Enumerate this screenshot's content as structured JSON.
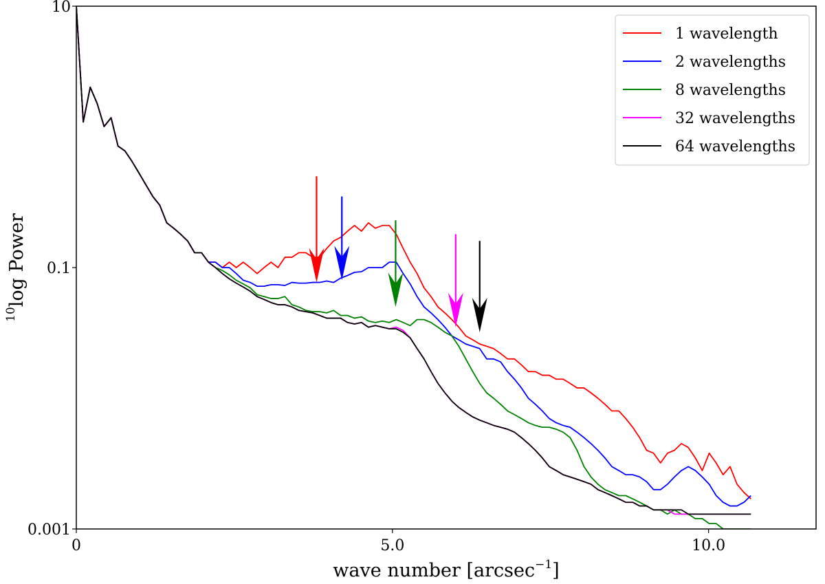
{
  "chart_data": {
    "type": "line",
    "title": "",
    "xlabel": "wave number [arcsec",
    "xlabel_sup": "−1",
    "xlabel_close": "]",
    "ylabel_sup": "10",
    "ylabel": "log Power",
    "xlim": [
      0,
      11.7
    ],
    "ylim": [
      0.001,
      10
    ],
    "yscale": "log",
    "grid": false,
    "legend_position": "top-right",
    "x_ticks": [
      {
        "value": 0,
        "label": "0"
      },
      {
        "value": 5.0,
        "label": "5.0"
      },
      {
        "value": 10.0,
        "label": "10.0"
      }
    ],
    "y_ticks": [
      {
        "value": 0.001,
        "label": "0.001"
      },
      {
        "value": 0.1,
        "label": "0.1"
      },
      {
        "value": 10,
        "label": "10"
      }
    ],
    "x": [
      0.0,
      0.11,
      0.22,
      0.33,
      0.44,
      0.55,
      0.66,
      0.77,
      0.88,
      0.99,
      1.1,
      1.21,
      1.32,
      1.43,
      1.54,
      1.65,
      1.76,
      1.87,
      1.98,
      2.09,
      2.2,
      2.31,
      2.42,
      2.53,
      2.64,
      2.75,
      2.86,
      2.97,
      3.08,
      3.19,
      3.3,
      3.41,
      3.52,
      3.63,
      3.74,
      3.85,
      3.96,
      4.07,
      4.18,
      4.29,
      4.4,
      4.51,
      4.62,
      4.73,
      4.84,
      4.95,
      5.06,
      5.17,
      5.28,
      5.39,
      5.5,
      5.61,
      5.72,
      5.83,
      5.94,
      6.05,
      6.16,
      6.27,
      6.38,
      6.49,
      6.6,
      6.71,
      6.82,
      6.93,
      7.04,
      7.15,
      7.26,
      7.37,
      7.48,
      7.59,
      7.7,
      7.81,
      7.92,
      8.03,
      8.14,
      8.25,
      8.36,
      8.47,
      8.58,
      8.69,
      8.8,
      8.91,
      9.02,
      9.13,
      9.24,
      9.35,
      9.46,
      9.57,
      9.68,
      9.79,
      9.9,
      10.01,
      10.12,
      10.23,
      10.34,
      10.45,
      10.56,
      10.67
    ],
    "series": [
      {
        "name": "1 wavelength",
        "color": "#ff0000",
        "values": [
          10,
          1.3,
          2.4,
          1.8,
          1.2,
          1.4,
          0.85,
          0.78,
          0.65,
          0.53,
          0.43,
          0.35,
          0.3,
          0.22,
          0.2,
          0.18,
          0.16,
          0.13,
          0.13,
          0.11,
          0.11,
          0.1,
          0.11,
          0.1,
          0.11,
          0.1,
          0.09,
          0.1,
          0.11,
          0.1,
          0.12,
          0.12,
          0.13,
          0.13,
          0.12,
          0.12,
          0.14,
          0.16,
          0.17,
          0.19,
          0.21,
          0.19,
          0.22,
          0.2,
          0.21,
          0.21,
          0.18,
          0.14,
          0.11,
          0.09,
          0.07,
          0.06,
          0.05,
          0.045,
          0.04,
          0.035,
          0.03,
          0.028,
          0.026,
          0.025,
          0.024,
          0.022,
          0.02,
          0.02,
          0.018,
          0.016,
          0.016,
          0.015,
          0.015,
          0.014,
          0.014,
          0.013,
          0.012,
          0.012,
          0.011,
          0.01,
          0.009,
          0.008,
          0.008,
          0.007,
          0.006,
          0.005,
          0.004,
          0.0038,
          0.0032,
          0.0038,
          0.004,
          0.0045,
          0.0042,
          0.0035,
          0.0028,
          0.0038,
          0.0032,
          0.0026,
          0.003,
          0.0022,
          0.0019,
          0.0017
        ]
      },
      {
        "name": "2 wavelengths",
        "color": "#0000ff",
        "values": [
          10,
          1.3,
          2.4,
          1.8,
          1.2,
          1.4,
          0.85,
          0.78,
          0.65,
          0.53,
          0.43,
          0.35,
          0.3,
          0.22,
          0.2,
          0.18,
          0.16,
          0.13,
          0.13,
          0.11,
          0.11,
          0.1,
          0.1,
          0.09,
          0.08,
          0.077,
          0.072,
          0.072,
          0.074,
          0.074,
          0.073,
          0.077,
          0.076,
          0.076,
          0.077,
          0.077,
          0.079,
          0.077,
          0.083,
          0.087,
          0.092,
          0.093,
          0.1,
          0.1,
          0.1,
          0.11,
          0.11,
          0.09,
          0.075,
          0.06,
          0.05,
          0.045,
          0.04,
          0.035,
          0.03,
          0.028,
          0.026,
          0.025,
          0.024,
          0.02,
          0.02,
          0.019,
          0.016,
          0.014,
          0.012,
          0.01,
          0.009,
          0.008,
          0.007,
          0.0065,
          0.0062,
          0.006,
          0.0055,
          0.005,
          0.0045,
          0.004,
          0.0035,
          0.003,
          0.0028,
          0.0026,
          0.0026,
          0.0025,
          0.0023,
          0.002,
          0.002,
          0.0022,
          0.0025,
          0.0028,
          0.003,
          0.0028,
          0.0025,
          0.0022,
          0.0018,
          0.0016,
          0.0015,
          0.0015,
          0.0016,
          0.0018
        ]
      },
      {
        "name": "8 wavelengths",
        "color": "#008000",
        "values": [
          10,
          1.3,
          2.4,
          1.8,
          1.2,
          1.4,
          0.85,
          0.78,
          0.65,
          0.53,
          0.43,
          0.35,
          0.3,
          0.22,
          0.2,
          0.18,
          0.16,
          0.13,
          0.13,
          0.11,
          0.1,
          0.095,
          0.088,
          0.08,
          0.075,
          0.07,
          0.062,
          0.06,
          0.058,
          0.058,
          0.06,
          0.052,
          0.05,
          0.047,
          0.046,
          0.046,
          0.045,
          0.047,
          0.043,
          0.043,
          0.041,
          0.042,
          0.039,
          0.038,
          0.039,
          0.038,
          0.04,
          0.038,
          0.036,
          0.04,
          0.04,
          0.038,
          0.035,
          0.032,
          0.03,
          0.025,
          0.02,
          0.016,
          0.013,
          0.011,
          0.01,
          0.009,
          0.008,
          0.0075,
          0.007,
          0.0065,
          0.0062,
          0.006,
          0.006,
          0.0058,
          0.0055,
          0.005,
          0.004,
          0.003,
          0.0025,
          0.0022,
          0.002,
          0.0019,
          0.0018,
          0.0018,
          0.0017,
          0.0016,
          0.0015,
          0.0014,
          0.0014,
          0.0013,
          0.0014,
          0.0013,
          0.0013,
          0.0012,
          0.0012,
          0.0011,
          0.0011,
          0.001,
          0.001,
          0.001,
          0.001,
          0.001
        ]
      },
      {
        "name": "32 wavelengths",
        "color": "#ff00ff",
        "values": [
          10,
          1.3,
          2.4,
          1.8,
          1.2,
          1.4,
          0.85,
          0.78,
          0.65,
          0.53,
          0.43,
          0.35,
          0.3,
          0.22,
          0.2,
          0.18,
          0.16,
          0.13,
          0.13,
          0.11,
          0.1,
          0.09,
          0.082,
          0.076,
          0.071,
          0.066,
          0.06,
          0.057,
          0.054,
          0.052,
          0.052,
          0.05,
          0.047,
          0.046,
          0.045,
          0.043,
          0.041,
          0.041,
          0.041,
          0.038,
          0.037,
          0.038,
          0.035,
          0.036,
          0.035,
          0.034,
          0.035,
          0.033,
          0.029,
          0.024,
          0.02,
          0.016,
          0.013,
          0.011,
          0.0095,
          0.0085,
          0.0078,
          0.0072,
          0.0068,
          0.0065,
          0.0062,
          0.006,
          0.0058,
          0.0055,
          0.005,
          0.0045,
          0.004,
          0.0035,
          0.003,
          0.0028,
          0.0026,
          0.0025,
          0.0024,
          0.0023,
          0.0022,
          0.002,
          0.0019,
          0.0018,
          0.0017,
          0.0016,
          0.0016,
          0.0015,
          0.0015,
          0.0014,
          0.0014,
          0.0014,
          0.0013,
          0.0013,
          0.0013,
          0.0013,
          0.0013,
          0.0013,
          0.0013,
          0.0013,
          0.0013,
          0.0013,
          0.0013,
          0.0013
        ]
      },
      {
        "name": "64 wavelengths",
        "color": "#000000",
        "values": [
          10,
          1.3,
          2.4,
          1.8,
          1.2,
          1.4,
          0.85,
          0.78,
          0.65,
          0.53,
          0.43,
          0.35,
          0.3,
          0.22,
          0.2,
          0.18,
          0.16,
          0.13,
          0.13,
          0.11,
          0.1,
          0.09,
          0.082,
          0.076,
          0.071,
          0.066,
          0.06,
          0.057,
          0.054,
          0.052,
          0.052,
          0.05,
          0.047,
          0.046,
          0.045,
          0.043,
          0.041,
          0.041,
          0.041,
          0.038,
          0.037,
          0.038,
          0.035,
          0.036,
          0.035,
          0.034,
          0.034,
          0.032,
          0.029,
          0.024,
          0.02,
          0.016,
          0.013,
          0.011,
          0.0095,
          0.0085,
          0.0078,
          0.0072,
          0.0068,
          0.0065,
          0.0062,
          0.006,
          0.0058,
          0.0055,
          0.005,
          0.0045,
          0.004,
          0.0035,
          0.003,
          0.0028,
          0.0026,
          0.0025,
          0.0024,
          0.0023,
          0.0022,
          0.002,
          0.0019,
          0.0018,
          0.0017,
          0.0016,
          0.0016,
          0.0015,
          0.0015,
          0.0014,
          0.0014,
          0.0014,
          0.0014,
          0.0014,
          0.0013,
          0.0013,
          0.0013,
          0.0013,
          0.0013,
          0.0013,
          0.0013,
          0.0013,
          0.0013,
          0.0013
        ]
      }
    ],
    "annotations": [
      {
        "type": "arrow",
        "color": "#ff0000",
        "x": 3.8,
        "y_tip": 0.077,
        "y_tail": 0.5
      },
      {
        "type": "arrow",
        "color": "#0000ff",
        "x": 4.2,
        "y_tip": 0.08,
        "y_tail": 0.35
      },
      {
        "type": "arrow",
        "color": "#008000",
        "x": 5.05,
        "y_tip": 0.05,
        "y_tail": 0.23
      },
      {
        "type": "arrow",
        "color": "#ff00ff",
        "x": 6.0,
        "y_tip": 0.035,
        "y_tail": 0.18
      },
      {
        "type": "arrow",
        "color": "#000000",
        "x": 6.38,
        "y_tip": 0.032,
        "y_tail": 0.16
      }
    ]
  }
}
